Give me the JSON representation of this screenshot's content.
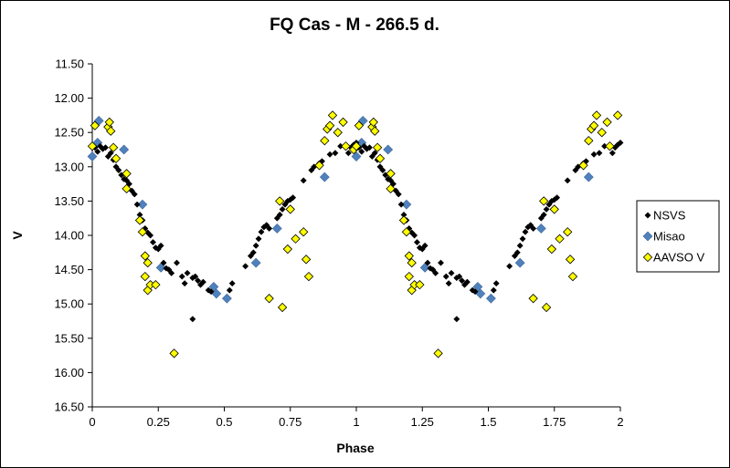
{
  "chart_data": {
    "type": "scatter",
    "title": "FQ Cas - M - 266.5 d.",
    "xlabel": "Phase",
    "ylabel": "V",
    "xlim": [
      0,
      2
    ],
    "ylim": [
      11.5,
      16.5
    ],
    "y_inverted": true,
    "x_ticks": [
      0,
      0.25,
      0.5,
      0.75,
      1,
      1.25,
      1.5,
      1.75,
      2
    ],
    "x_tick_labels": [
      "0",
      "0.25",
      "0.5",
      "0.75",
      "1",
      "1.25",
      "1.5",
      "1.75",
      "2"
    ],
    "y_ticks": [
      11.5,
      12.0,
      12.5,
      13.0,
      13.5,
      14.0,
      14.5,
      15.0,
      15.5,
      16.0,
      16.5
    ],
    "y_tick_labels": [
      "11.50",
      "12.00",
      "12.50",
      "13.00",
      "13.50",
      "14.00",
      "14.50",
      "15.00",
      "15.50",
      "16.00",
      "16.50"
    ],
    "grid": false,
    "legend_position": "right",
    "series": [
      {
        "name": "NSVS",
        "color": "#000000",
        "marker": "diamond-small",
        "points": [
          [
            0.01,
            12.72
          ],
          [
            0.02,
            12.78
          ],
          [
            0.03,
            12.7
          ],
          [
            0.04,
            12.74
          ],
          [
            0.05,
            12.72
          ],
          [
            0.06,
            12.85
          ],
          [
            0.07,
            12.8
          ],
          [
            0.08,
            12.9
          ],
          [
            0.09,
            13.0
          ],
          [
            0.1,
            13.05
          ],
          [
            0.11,
            13.12
          ],
          [
            0.12,
            13.18
          ],
          [
            0.13,
            13.2
          ],
          [
            0.14,
            13.25
          ],
          [
            0.15,
            13.35
          ],
          [
            0.16,
            13.4
          ],
          [
            0.17,
            13.55
          ],
          [
            0.18,
            13.7
          ],
          [
            0.19,
            13.78
          ],
          [
            0.2,
            13.9
          ],
          [
            0.21,
            13.96
          ],
          [
            0.22,
            14.0
          ],
          [
            0.23,
            14.1
          ],
          [
            0.24,
            14.18
          ],
          [
            0.25,
            14.2
          ],
          [
            0.26,
            14.15
          ],
          [
            0.27,
            14.4
          ],
          [
            0.28,
            14.48
          ],
          [
            0.29,
            14.5
          ],
          [
            0.3,
            14.55
          ],
          [
            0.32,
            14.4
          ],
          [
            0.34,
            14.6
          ],
          [
            0.35,
            14.7
          ],
          [
            0.36,
            14.55
          ],
          [
            0.38,
            14.62
          ],
          [
            0.39,
            14.6
          ],
          [
            0.4,
            14.66
          ],
          [
            0.41,
            14.72
          ],
          [
            0.42,
            14.68
          ],
          [
            0.44,
            14.8
          ],
          [
            0.45,
            14.82
          ],
          [
            0.38,
            15.22
          ],
          [
            0.52,
            14.8
          ],
          [
            0.53,
            14.7
          ],
          [
            0.58,
            14.45
          ],
          [
            0.6,
            14.3
          ],
          [
            0.61,
            14.25
          ],
          [
            0.62,
            14.15
          ],
          [
            0.63,
            14.05
          ],
          [
            0.64,
            13.95
          ],
          [
            0.65,
            13.88
          ],
          [
            0.66,
            13.85
          ],
          [
            0.67,
            13.9
          ],
          [
            0.7,
            13.75
          ],
          [
            0.71,
            13.7
          ],
          [
            0.72,
            13.62
          ],
          [
            0.73,
            13.55
          ],
          [
            0.74,
            13.5
          ],
          [
            0.75,
            13.48
          ],
          [
            0.76,
            13.45
          ],
          [
            0.8,
            13.2
          ],
          [
            0.83,
            13.05
          ],
          [
            0.84,
            13.0
          ],
          [
            0.86,
            12.95
          ],
          [
            0.87,
            12.92
          ],
          [
            0.9,
            12.82
          ],
          [
            0.92,
            12.8
          ],
          [
            0.94,
            12.7
          ],
          [
            0.96,
            12.72
          ],
          [
            0.97,
            12.8
          ],
          [
            0.98,
            12.72
          ],
          [
            0.99,
            12.68
          ],
          [
            1.0,
            12.65
          ],
          [
            1.01,
            12.72
          ],
          [
            1.02,
            12.78
          ],
          [
            1.03,
            12.7
          ],
          [
            1.04,
            12.74
          ],
          [
            1.05,
            12.72
          ],
          [
            1.06,
            12.85
          ],
          [
            1.07,
            12.8
          ],
          [
            1.08,
            12.9
          ],
          [
            1.09,
            13.0
          ],
          [
            1.1,
            13.05
          ],
          [
            1.11,
            13.12
          ],
          [
            1.12,
            13.18
          ],
          [
            1.13,
            13.2
          ],
          [
            1.14,
            13.25
          ],
          [
            1.15,
            13.35
          ],
          [
            1.16,
            13.4
          ],
          [
            1.17,
            13.55
          ],
          [
            1.18,
            13.7
          ],
          [
            1.19,
            13.78
          ],
          [
            1.2,
            13.9
          ],
          [
            1.21,
            13.96
          ],
          [
            1.22,
            14.0
          ],
          [
            1.23,
            14.1
          ],
          [
            1.24,
            14.18
          ],
          [
            1.25,
            14.2
          ],
          [
            1.26,
            14.15
          ],
          [
            1.27,
            14.4
          ],
          [
            1.28,
            14.48
          ],
          [
            1.29,
            14.5
          ],
          [
            1.3,
            14.55
          ],
          [
            1.32,
            14.4
          ],
          [
            1.34,
            14.6
          ],
          [
            1.35,
            14.7
          ],
          [
            1.36,
            14.55
          ],
          [
            1.38,
            14.62
          ],
          [
            1.39,
            14.6
          ],
          [
            1.4,
            14.66
          ],
          [
            1.41,
            14.72
          ],
          [
            1.42,
            14.68
          ],
          [
            1.44,
            14.8
          ],
          [
            1.45,
            14.82
          ],
          [
            1.38,
            15.22
          ],
          [
            1.52,
            14.8
          ],
          [
            1.53,
            14.7
          ],
          [
            1.58,
            14.45
          ],
          [
            1.6,
            14.3
          ],
          [
            1.61,
            14.25
          ],
          [
            1.62,
            14.15
          ],
          [
            1.63,
            14.05
          ],
          [
            1.64,
            13.95
          ],
          [
            1.65,
            13.88
          ],
          [
            1.66,
            13.85
          ],
          [
            1.67,
            13.9
          ],
          [
            1.7,
            13.75
          ],
          [
            1.71,
            13.7
          ],
          [
            1.72,
            13.62
          ],
          [
            1.73,
            13.55
          ],
          [
            1.74,
            13.5
          ],
          [
            1.75,
            13.48
          ],
          [
            1.76,
            13.45
          ],
          [
            1.8,
            13.2
          ],
          [
            1.83,
            13.05
          ],
          [
            1.84,
            13.0
          ],
          [
            1.86,
            12.95
          ],
          [
            1.87,
            12.92
          ],
          [
            1.9,
            12.82
          ],
          [
            1.92,
            12.8
          ],
          [
            1.94,
            12.7
          ],
          [
            1.96,
            12.72
          ],
          [
            1.97,
            12.8
          ],
          [
            1.98,
            12.72
          ],
          [
            1.99,
            12.68
          ],
          [
            2.0,
            12.65
          ]
        ]
      },
      {
        "name": "Misao",
        "color": "#4f81bd",
        "marker": "diamond",
        "points": [
          [
            0.0,
            12.85
          ],
          [
            0.02,
            12.65
          ],
          [
            0.025,
            12.33
          ],
          [
            0.12,
            12.75
          ],
          [
            0.19,
            13.55
          ],
          [
            0.26,
            14.47
          ],
          [
            0.46,
            14.75
          ],
          [
            0.47,
            14.85
          ],
          [
            0.51,
            14.92
          ],
          [
            0.62,
            14.4
          ],
          [
            0.7,
            13.9
          ],
          [
            0.88,
            13.15
          ],
          [
            1.0,
            12.85
          ],
          [
            1.02,
            12.65
          ],
          [
            1.025,
            12.33
          ],
          [
            1.12,
            12.75
          ],
          [
            1.19,
            13.55
          ],
          [
            1.26,
            14.47
          ],
          [
            1.46,
            14.75
          ],
          [
            1.47,
            14.85
          ],
          [
            1.51,
            14.92
          ],
          [
            1.62,
            14.4
          ],
          [
            1.7,
            13.9
          ],
          [
            1.88,
            13.15
          ]
        ]
      },
      {
        "name": "AAVSO V",
        "color": "#ffff00",
        "marker": "diamond-outlined",
        "points": [
          [
            0.0,
            12.7
          ],
          [
            0.01,
            12.4
          ],
          [
            0.06,
            12.42
          ],
          [
            0.065,
            12.35
          ],
          [
            0.07,
            12.48
          ],
          [
            0.08,
            12.72
          ],
          [
            0.09,
            12.88
          ],
          [
            0.13,
            13.32
          ],
          [
            0.13,
            13.1
          ],
          [
            0.18,
            13.78
          ],
          [
            0.19,
            13.95
          ],
          [
            0.2,
            14.3
          ],
          [
            0.2,
            14.6
          ],
          [
            0.21,
            14.4
          ],
          [
            0.21,
            14.8
          ],
          [
            0.22,
            14.72
          ],
          [
            0.24,
            14.72
          ],
          [
            0.31,
            15.72
          ],
          [
            0.67,
            14.92
          ],
          [
            0.71,
            13.5
          ],
          [
            0.72,
            15.05
          ],
          [
            0.74,
            14.2
          ],
          [
            0.75,
            13.62
          ],
          [
            0.77,
            14.05
          ],
          [
            0.8,
            13.95
          ],
          [
            0.81,
            14.35
          ],
          [
            0.82,
            14.6
          ],
          [
            0.86,
            12.98
          ],
          [
            0.88,
            12.62
          ],
          [
            0.89,
            12.45
          ],
          [
            0.9,
            12.4
          ],
          [
            0.91,
            12.25
          ],
          [
            0.93,
            12.5
          ],
          [
            0.95,
            12.35
          ],
          [
            0.96,
            12.7
          ],
          [
            0.99,
            12.75
          ],
          [
            1.0,
            12.7
          ],
          [
            1.01,
            12.4
          ],
          [
            1.06,
            12.42
          ],
          [
            1.065,
            12.35
          ],
          [
            1.07,
            12.48
          ],
          [
            1.08,
            12.72
          ],
          [
            1.09,
            12.88
          ],
          [
            1.13,
            13.32
          ],
          [
            1.13,
            13.1
          ],
          [
            1.18,
            13.78
          ],
          [
            1.19,
            13.95
          ],
          [
            1.2,
            14.3
          ],
          [
            1.2,
            14.6
          ],
          [
            1.21,
            14.4
          ],
          [
            1.21,
            14.8
          ],
          [
            1.22,
            14.72
          ],
          [
            1.24,
            14.72
          ],
          [
            1.31,
            15.72
          ],
          [
            1.67,
            14.92
          ],
          [
            1.71,
            13.5
          ],
          [
            1.72,
            15.05
          ],
          [
            1.74,
            14.2
          ],
          [
            1.75,
            13.62
          ],
          [
            1.77,
            14.05
          ],
          [
            1.8,
            13.95
          ],
          [
            1.81,
            14.35
          ],
          [
            1.82,
            14.6
          ],
          [
            1.86,
            12.98
          ],
          [
            1.88,
            12.62
          ],
          [
            1.89,
            12.45
          ],
          [
            1.9,
            12.4
          ],
          [
            1.91,
            12.25
          ],
          [
            1.93,
            12.5
          ],
          [
            1.95,
            12.35
          ],
          [
            1.96,
            12.7
          ],
          [
            1.99,
            12.25
          ]
        ]
      }
    ]
  }
}
